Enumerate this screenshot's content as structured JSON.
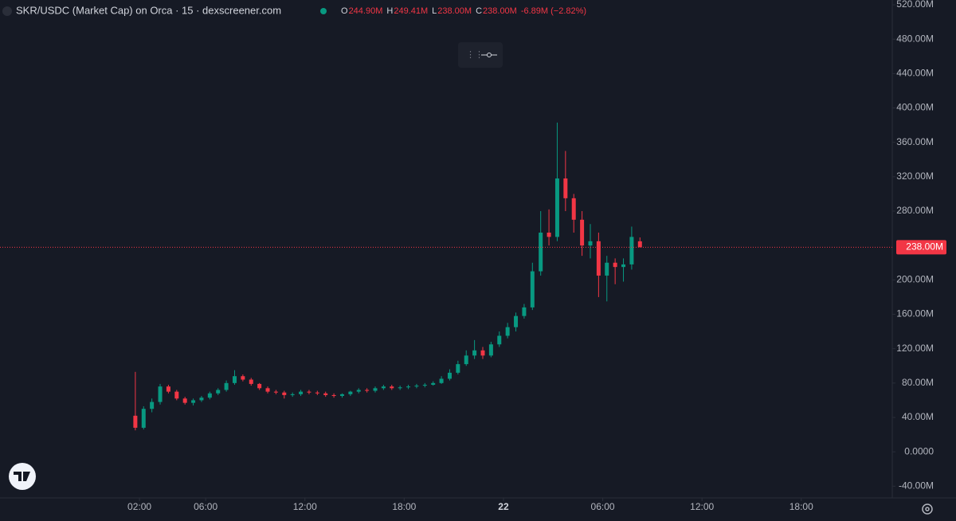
{
  "chart_data": {
    "type": "candlestick",
    "title": "SKR/USDC (Market Cap) on Orca · 15 · dexscreener.com",
    "legend_ohlc": [
      {
        "label": "O",
        "value": "244.90M"
      },
      {
        "label": "H",
        "value": "249.41M"
      },
      {
        "label": "L",
        "value": "238.00M"
      },
      {
        "label": "C",
        "value": "238.00M"
      }
    ],
    "change": "-6.89M (−2.82%)",
    "last_price": {
      "value": 238,
      "label": "238.00M"
    },
    "up_color": "#089981",
    "down_color": "#f23645",
    "x": [
      1.75,
      2.25,
      2.75,
      3.25,
      3.75,
      4.25,
      4.75,
      5.25,
      5.75,
      6.25,
      6.75,
      7.25,
      7.75,
      8.25,
      8.75,
      9.25,
      9.75,
      10.25,
      10.75,
      11.25,
      11.75,
      12.25,
      12.75,
      13.25,
      13.75,
      14.25,
      14.75,
      15.25,
      15.75,
      16.25,
      16.75,
      17.25,
      17.75,
      18.25,
      18.75,
      19.25,
      19.75,
      20.25,
      20.75,
      21.25,
      21.75,
      22.25,
      22.75,
      23.25,
      23.75,
      24.25,
      24.75,
      25.25,
      25.75,
      26.25,
      26.75,
      27.25,
      27.75,
      28.25,
      28.75,
      29.25,
      29.75,
      30.25,
      30.75,
      31.25,
      31.75,
      32.25
    ],
    "open": [
      42,
      28,
      50,
      58,
      76,
      70,
      62,
      57,
      60,
      63,
      68,
      72,
      80,
      88,
      84,
      79,
      74,
      70,
      69,
      66,
      67,
      70,
      69,
      68,
      66,
      65,
      67,
      70,
      72,
      71,
      74,
      76,
      74,
      75,
      76,
      77,
      78,
      80,
      85,
      92,
      102,
      112,
      118,
      112,
      125,
      135,
      145,
      158,
      168,
      210,
      255,
      250,
      318,
      295,
      270,
      240,
      245,
      205,
      220,
      215,
      218,
      244.9
    ],
    "high": [
      93,
      53,
      62,
      79,
      78,
      72,
      64,
      62,
      65,
      70,
      74,
      83,
      95,
      90,
      86,
      80,
      76,
      72,
      71,
      69,
      72,
      72,
      71,
      70,
      68,
      68,
      71,
      74,
      74,
      76,
      78,
      78,
      77,
      78,
      79,
      80,
      82,
      88,
      96,
      106,
      118,
      130,
      122,
      128,
      140,
      150,
      162,
      172,
      220,
      280,
      282,
      383,
      350,
      300,
      280,
      265,
      255,
      228,
      225,
      225,
      262,
      249.41
    ],
    "low": [
      25,
      26,
      46,
      55,
      68,
      60,
      55,
      54,
      58,
      61,
      66,
      70,
      78,
      82,
      77,
      72,
      68,
      67,
      62,
      64,
      65,
      67,
      66,
      64,
      63,
      63,
      65,
      68,
      69,
      69,
      72,
      72,
      72,
      73,
      74,
      75,
      77,
      79,
      83,
      90,
      100,
      108,
      108,
      110,
      122,
      132,
      140,
      155,
      165,
      205,
      240,
      245,
      280,
      255,
      228,
      225,
      180,
      175,
      195,
      198,
      212,
      238
    ],
    "close": [
      28,
      50,
      58,
      76,
      70,
      62,
      57,
      60,
      63,
      68,
      72,
      80,
      88,
      84,
      79,
      74,
      70,
      69,
      66,
      67,
      70,
      69,
      68,
      66,
      65,
      67,
      70,
      72,
      71,
      74,
      76,
      74,
      75,
      76,
      77,
      78,
      80,
      85,
      92,
      102,
      112,
      118,
      112,
      125,
      135,
      145,
      158,
      168,
      210,
      255,
      250,
      318,
      295,
      270,
      240,
      245,
      205,
      220,
      215,
      218,
      250,
      238
    ],
    "xlim": [
      -6.43,
      47.5
    ],
    "xticks": [
      {
        "value": 2,
        "label": "02:00"
      },
      {
        "value": 6,
        "label": "06:00"
      },
      {
        "value": 12,
        "label": "12:00"
      },
      {
        "value": 18,
        "label": "18:00"
      },
      {
        "value": 24,
        "label": "22"
      },
      {
        "value": 30,
        "label": "06:00"
      },
      {
        "value": 36,
        "label": "12:00"
      },
      {
        "value": 42,
        "label": "18:00"
      }
    ],
    "ylim": [
      -53.6,
      525.6
    ],
    "yticks": [
      {
        "value": -40,
        "label": "-40.00M"
      },
      {
        "value": 0,
        "label": "0.0000"
      },
      {
        "value": 40,
        "label": "40.00M"
      },
      {
        "value": 80,
        "label": "80.00M"
      },
      {
        "value": 120,
        "label": "120.00M"
      },
      {
        "value": 160,
        "label": "160.00M"
      },
      {
        "value": 200,
        "label": "200.00M"
      },
      {
        "value": 280,
        "label": "280.00M"
      },
      {
        "value": 320,
        "label": "320.00M"
      },
      {
        "value": 360,
        "label": "360.00M"
      },
      {
        "value": 400,
        "label": "400.00M"
      },
      {
        "value": 440,
        "label": "440.00M"
      },
      {
        "value": 480,
        "label": "480.00M"
      },
      {
        "value": 520,
        "label": "520.00M"
      }
    ]
  }
}
